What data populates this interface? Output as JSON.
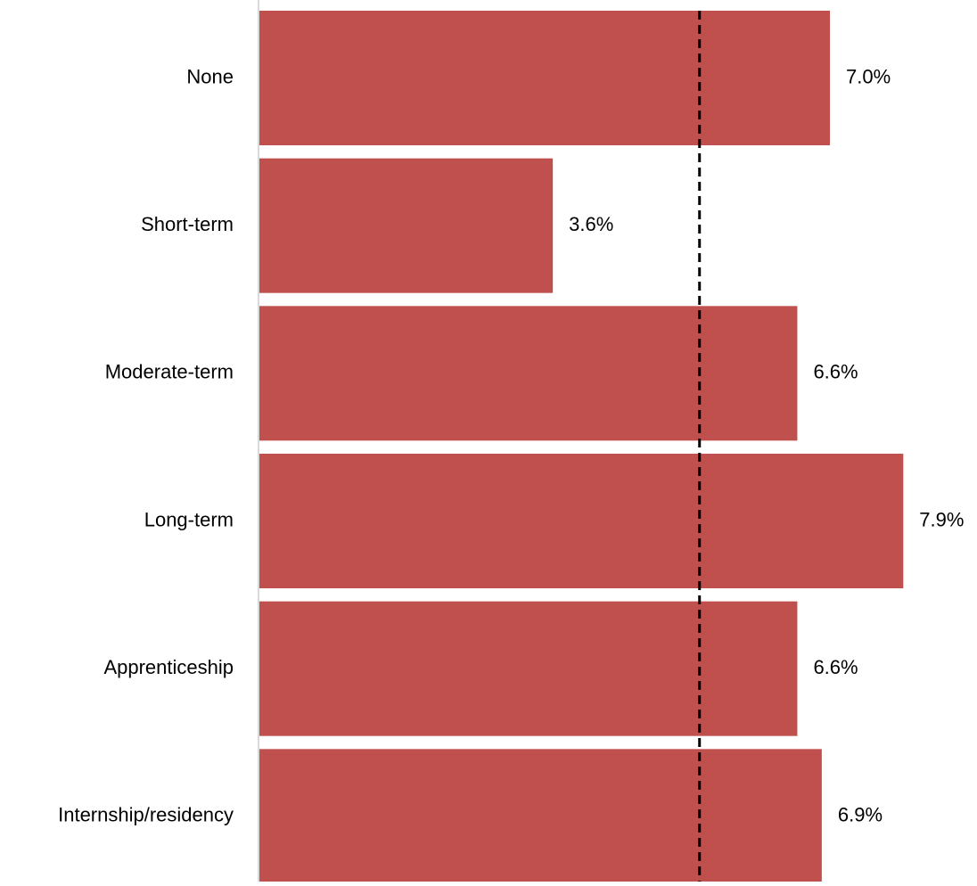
{
  "chart_data": {
    "type": "bar",
    "orientation": "horizontal",
    "categories": [
      "None",
      "Short-term",
      "Moderate-term",
      "Long-term",
      "Apprenticeship",
      "Internship/residency"
    ],
    "values": [
      7.0,
      3.6,
      6.6,
      7.9,
      6.6,
      6.9
    ],
    "value_labels": [
      "7.0%",
      "3.6%",
      "6.6%",
      "7.9%",
      "6.6%",
      "6.9%"
    ],
    "reference_line": {
      "value": 5.4,
      "style": "dashed"
    },
    "title": "",
    "xlabel": "",
    "ylabel": "",
    "xlim": [
      0,
      8.4
    ],
    "grid": false,
    "legend": "none",
    "colors": {
      "bar": "#C0504D",
      "reference_line": "#000000",
      "axis": "#D9D9D9",
      "text": "#000000"
    }
  }
}
